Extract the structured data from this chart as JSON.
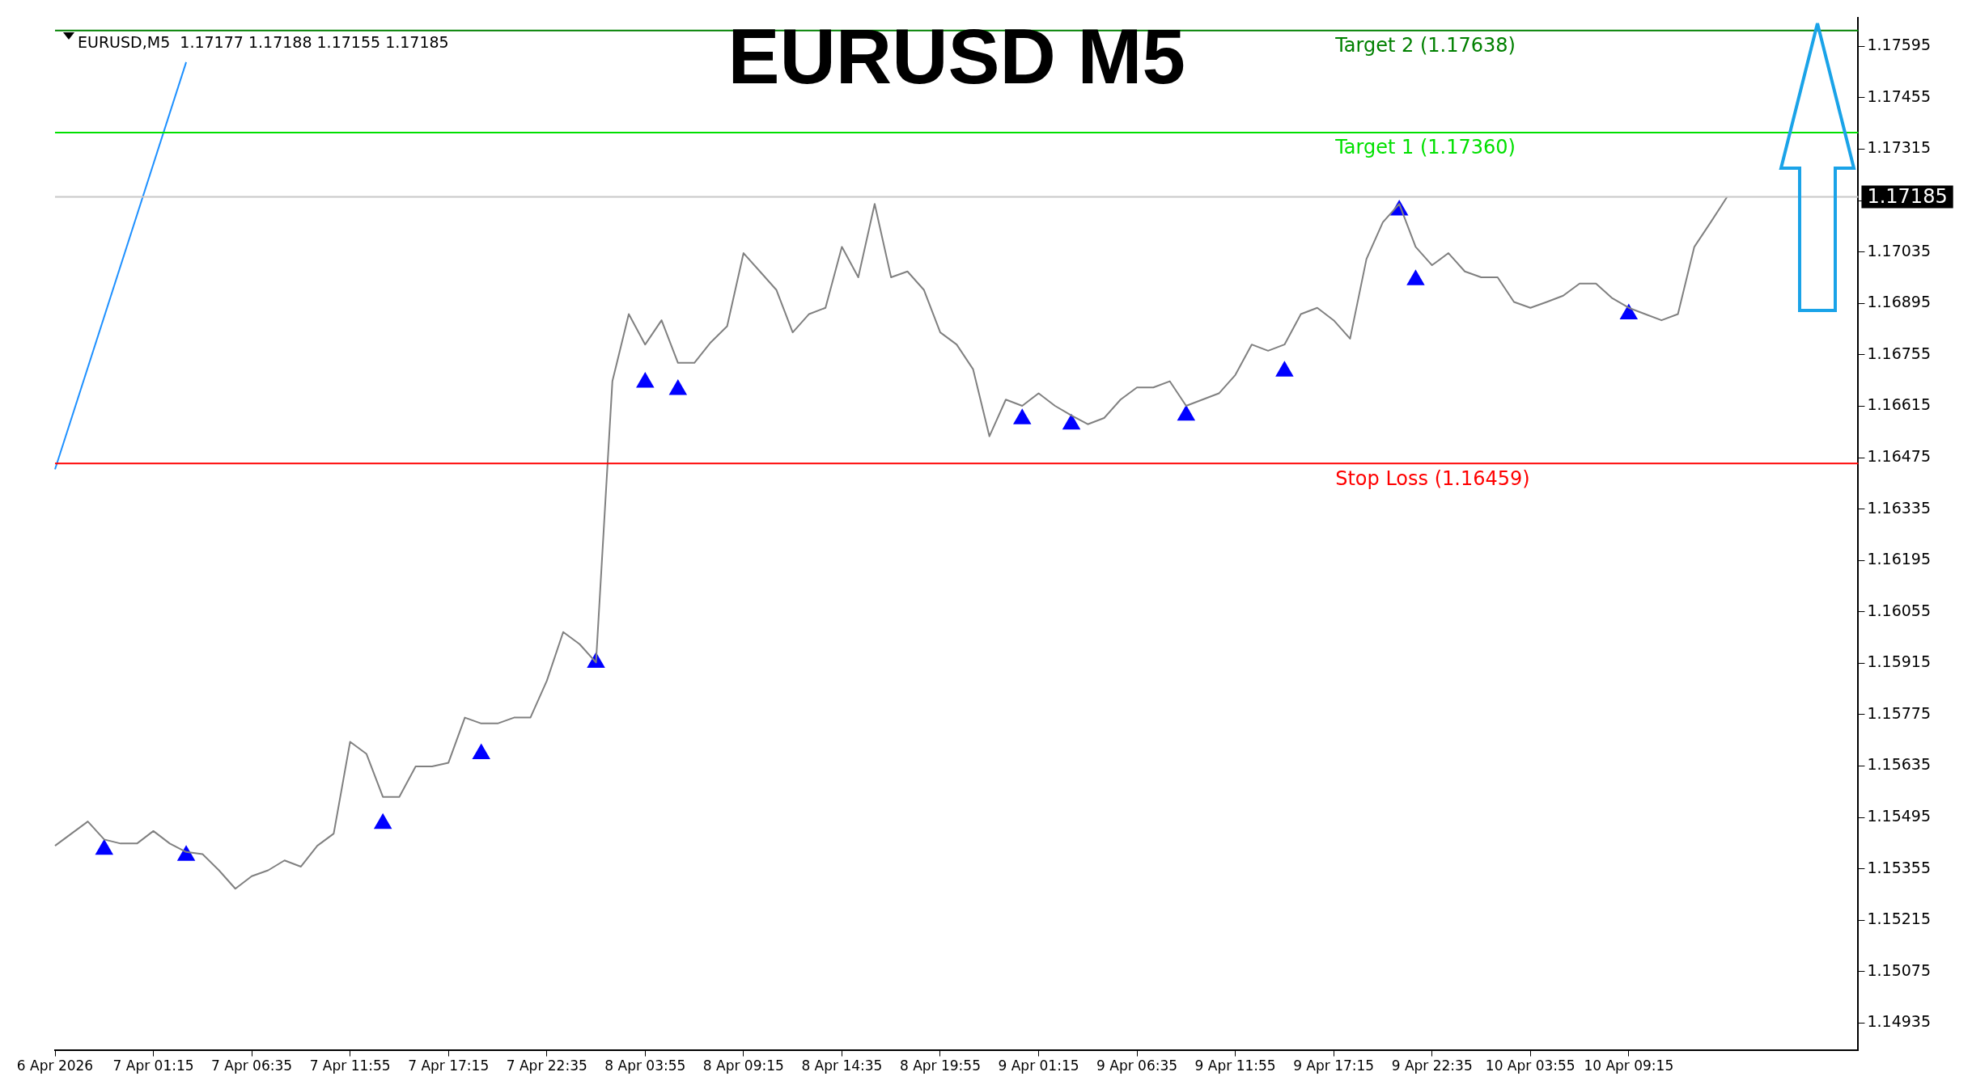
{
  "chart_data": {
    "type": "line",
    "title": "EURUSD M5",
    "annotations": [
      "EURUSD,M5  1.17177 1.17188 1.17155 1.17185"
    ],
    "categories": [
      "6 Apr 2026",
      null,
      null,
      null,
      null,
      null,
      "7 Apr 01:15",
      null,
      null,
      null,
      null,
      null,
      "7 Apr 06:35",
      null,
      null,
      null,
      null,
      null,
      "7 Apr 11:55",
      null,
      null,
      null,
      null,
      null,
      "7 Apr 17:15",
      null,
      null,
      null,
      null,
      null,
      "7 Apr 22:35",
      null,
      null,
      null,
      null,
      null,
      "8 Apr 03:55",
      null,
      null,
      null,
      null,
      null,
      "8 Apr 09:15",
      null,
      null,
      null,
      null,
      null,
      "8 Apr 14:35",
      null,
      null,
      null,
      null,
      null,
      "8 Apr 19:55",
      null,
      null,
      null,
      null,
      null,
      "9 Apr 01:15",
      null,
      null,
      null,
      null,
      null,
      "9 Apr 06:35",
      null,
      null,
      null,
      null,
      null,
      "9 Apr 11:55",
      null,
      null,
      null,
      null,
      null,
      "9 Apr 17:15",
      null,
      null,
      null,
      null,
      null,
      "9 Apr 22:35",
      null,
      null,
      null,
      null,
      null,
      "10 Apr 03:55",
      null,
      null,
      null,
      null,
      null,
      "10 Apr 09:15",
      null,
      null,
      null,
      null,
      null,
      null,
      null,
      null,
      null,
      null,
      null,
      null,
      null,
      null
    ],
    "series": [
      {
        "type": "line",
        "color": "#808080",
        "values": [
          1.15418,
          1.15451,
          1.15484,
          1.15435,
          1.15424,
          1.15424,
          1.15458,
          1.15424,
          1.15401,
          1.15395,
          1.15351,
          1.15301,
          1.15335,
          1.15351,
          1.15378,
          1.15361,
          1.15418,
          1.15451,
          1.15701,
          1.15668,
          1.15551,
          1.15551,
          1.15634,
          1.15634,
          1.15644,
          1.15767,
          1.15751,
          1.15751,
          1.15767,
          1.15767,
          1.15867,
          1.16,
          1.15967,
          1.15917,
          1.16683,
          1.16866,
          1.16783,
          1.16849,
          1.16733,
          1.16733,
          1.16789,
          1.16833,
          1.17032,
          1.16982,
          1.16932,
          1.16816,
          1.16866,
          1.16883,
          1.17049,
          1.16966,
          1.17166,
          1.16966,
          1.16982,
          1.16932,
          1.16816,
          1.16783,
          1.16716,
          1.16533,
          1.16633,
          1.16616,
          1.1665,
          1.16616,
          1.1659,
          1.16566,
          1.16583,
          1.16633,
          1.16666,
          1.16666,
          1.16683,
          1.16616,
          1.16633,
          1.1665,
          1.167,
          1.16783,
          1.16766,
          1.16783,
          1.16866,
          1.16883,
          1.16849,
          1.16799,
          1.17016,
          1.17116,
          1.17166,
          1.17049,
          1.16999,
          1.17032,
          1.16982,
          1.16966,
          1.16966,
          1.16899,
          1.16883,
          1.16899,
          1.16916,
          1.16949,
          1.16949,
          1.16909,
          1.16883,
          1.16866,
          1.16849,
          1.16866,
          1.17049,
          1.17116,
          1.17185,
          null,
          null,
          null,
          null,
          null,
          null,
          null,
          null
        ]
      },
      {
        "type": "scatter",
        "color": "#0000ff",
        "marker": "triangle",
        "values": [
          null,
          null,
          null,
          1.15408,
          null,
          null,
          null,
          null,
          1.15391,
          null,
          null,
          null,
          null,
          null,
          null,
          null,
          null,
          null,
          null,
          null,
          1.15478,
          null,
          null,
          null,
          null,
          null,
          1.15668,
          null,
          null,
          null,
          null,
          null,
          null,
          1.15917,
          null,
          null,
          1.1668,
          null,
          1.1666,
          null,
          null,
          null,
          null,
          null,
          null,
          null,
          null,
          null,
          null,
          null,
          null,
          null,
          null,
          null,
          null,
          null,
          null,
          null,
          null,
          1.1658,
          null,
          null,
          1.16566,
          null,
          null,
          null,
          null,
          null,
          null,
          1.1659,
          null,
          null,
          null,
          null,
          null,
          1.1671,
          null,
          null,
          null,
          null,
          null,
          null,
          1.17149,
          1.16959,
          null,
          null,
          null,
          null,
          null,
          null,
          null,
          null,
          null,
          null,
          null,
          null,
          1.16866,
          null,
          null,
          null,
          null,
          null,
          null,
          null,
          null,
          null,
          null,
          null,
          null,
          null,
          null
        ]
      },
      {
        "type": "line",
        "color": "#1e90ff",
        "values": [
          1.16443,
          null,
          null,
          null,
          null,
          null,
          null,
          null,
          1.17552,
          null,
          null,
          null,
          null,
          null,
          null,
          null,
          null,
          null,
          null,
          null,
          null,
          null,
          null,
          null,
          null,
          null,
          null,
          null,
          null,
          null,
          null,
          null,
          null,
          null,
          null,
          null,
          null,
          null,
          null,
          null,
          null,
          null,
          null,
          null,
          null,
          null,
          null,
          null,
          null,
          null,
          null,
          null,
          null,
          null,
          null,
          null,
          null,
          null,
          null,
          null,
          null,
          null,
          null,
          null,
          null,
          null,
          null,
          null,
          null,
          null,
          null,
          null,
          null,
          null,
          null,
          null,
          null,
          null,
          null,
          null,
          null,
          null,
          null,
          null,
          null,
          null,
          null,
          null,
          null,
          null,
          null,
          null,
          null,
          null,
          null,
          null,
          null,
          null,
          null,
          null,
          null,
          null,
          null,
          null,
          null,
          null,
          null,
          null,
          null,
          null,
          null
        ]
      }
    ],
    "ylim": [
      1.14862,
      1.17672
    ],
    "yticks": [
      1.14935,
      1.15075,
      1.15215,
      1.15355,
      1.15495,
      1.15635,
      1.15775,
      1.15915,
      1.16055,
      1.16195,
      1.16335,
      1.16475,
      1.16615,
      1.16755,
      1.16895,
      1.17035,
      {
        "value": 1.17175,
        "label": null
      },
      1.17315,
      1.17455,
      1.17595
    ],
    "ref_lines": [
      {
        "axis": "y",
        "value": 1.17638,
        "label": "Target 2 (1.17638)",
        "color": "#008000"
      },
      {
        "axis": "y",
        "value": 1.1736,
        "label": "Target 1 (1.17360)",
        "color": "#00e000"
      },
      {
        "axis": "y",
        "value": 1.16459,
        "label": "Stop Loss (1.16459)",
        "color": "#ff0000"
      },
      {
        "axis": "y",
        "value": 1.17185,
        "label": "1.17185"
      }
    ],
    "grid": false,
    "legend": false,
    "marker": "none"
  }
}
